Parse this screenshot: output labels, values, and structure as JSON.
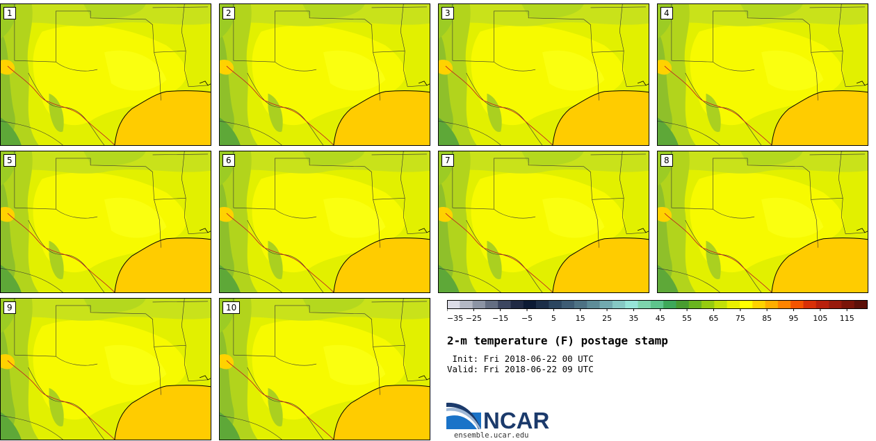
{
  "panels": [
    {
      "label": "1"
    },
    {
      "label": "2"
    },
    {
      "label": "3"
    },
    {
      "label": "4"
    },
    {
      "label": "5"
    },
    {
      "label": "6"
    },
    {
      "label": "7"
    },
    {
      "label": "8"
    },
    {
      "label": "9"
    },
    {
      "label": "10"
    }
  ],
  "colorbar": {
    "colors": [
      "#dcdce6",
      "#b4b8c4",
      "#8c94a4",
      "#646e82",
      "#3c4660",
      "#202a44",
      "#0c1a34",
      "#1c2e48",
      "#2c4660",
      "#3e5c74",
      "#4e7284",
      "#5e8c98",
      "#72aab0",
      "#86c8c4",
      "#96e4d8",
      "#7ed4ae",
      "#5ec48c",
      "#3ea85a",
      "#489c30",
      "#6ab420",
      "#96cc10",
      "#c2e008",
      "#e8f000",
      "#ffff00",
      "#ffd200",
      "#ffae00",
      "#ff8400",
      "#f45400",
      "#d83008",
      "#b8200c",
      "#981a0c",
      "#7a1408",
      "#5c1008"
    ],
    "ticks": [
      "−35",
      "−25",
      "−15",
      "−5",
      "5",
      "15",
      "25",
      "35",
      "45",
      "55",
      "65",
      "75",
      "85",
      "95",
      "105",
      "115"
    ]
  },
  "title": "2-m temperature (F) postage stamp",
  "init": " Init: Fri 2018-06-22 00 UTC",
  "valid": "Valid: Fri 2018-06-22 09 UTC",
  "logo": {
    "text": "NCAR",
    "url": "ensemble.ucar.edu",
    "color": "#1b3a6b",
    "accent": "#1a73c8"
  }
}
